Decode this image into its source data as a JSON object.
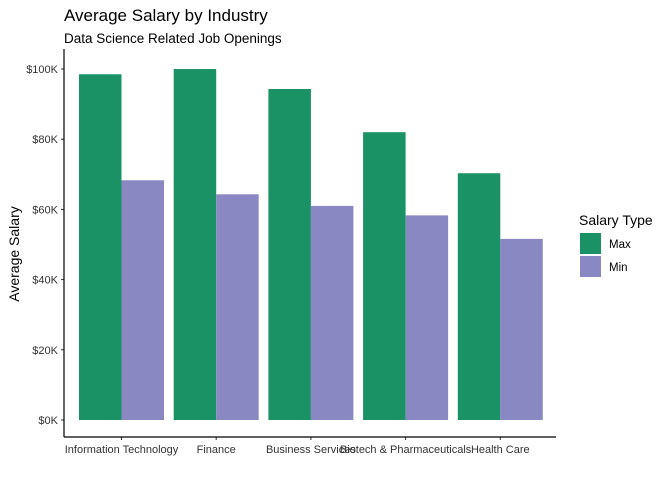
{
  "chart_data": {
    "type": "bar",
    "title": "Average Salary by Industry",
    "subtitle": "Data Science Related Job Openings",
    "xlabel": "",
    "ylabel": "Average Salary",
    "categories": [
      "Information Technology",
      "Finance",
      "Business Services",
      "Biotech & Pharmaceuticals",
      "Health Care"
    ],
    "series": [
      {
        "name": "Max",
        "color": "#1a9265",
        "values": [
          98500,
          100000,
          94300,
          82000,
          70300
        ]
      },
      {
        "name": "Min",
        "color": "#8a88c3",
        "values": [
          68300,
          64300,
          61000,
          58300,
          51600
        ]
      }
    ],
    "ylim": [
      0,
      100000
    ],
    "yticks": [
      0,
      20000,
      40000,
      60000,
      80000,
      100000
    ],
    "ytick_labels": [
      "$0K",
      "$20K",
      "$40K",
      "$60K",
      "$80K",
      "$100K"
    ],
    "legend": {
      "title": "Salary Type",
      "position": "right"
    },
    "grid": false
  }
}
